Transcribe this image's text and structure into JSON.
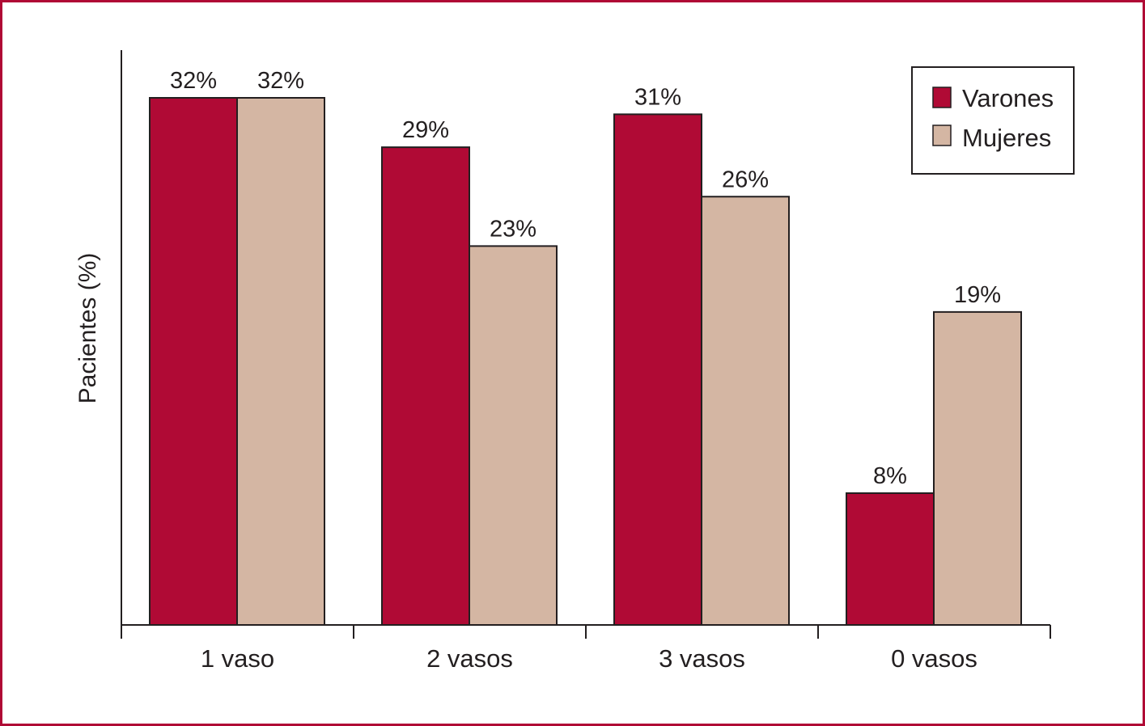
{
  "colors": {
    "frame": "#b00a35",
    "series": [
      "#b00a35",
      "#d4b6a3"
    ],
    "outline": "#231f20"
  },
  "chart_data": {
    "type": "bar",
    "title": "",
    "xlabel": "",
    "ylabel": "Pacientes (%)",
    "ylim": [
      0,
      32
    ],
    "grid": false,
    "legend_position": "top-right",
    "categories": [
      "1 vaso",
      "2 vasos",
      "3 vasos",
      "0 vasos"
    ],
    "series": [
      {
        "name": "Varones",
        "values": [
          32,
          29,
          31,
          8
        ],
        "labels": [
          "32%",
          "29%",
          "31%",
          "8%"
        ]
      },
      {
        "name": "Mujeres",
        "values": [
          32,
          23,
          26,
          19
        ],
        "labels": [
          "32%",
          "23%",
          "26%",
          "19%"
        ]
      }
    ]
  }
}
